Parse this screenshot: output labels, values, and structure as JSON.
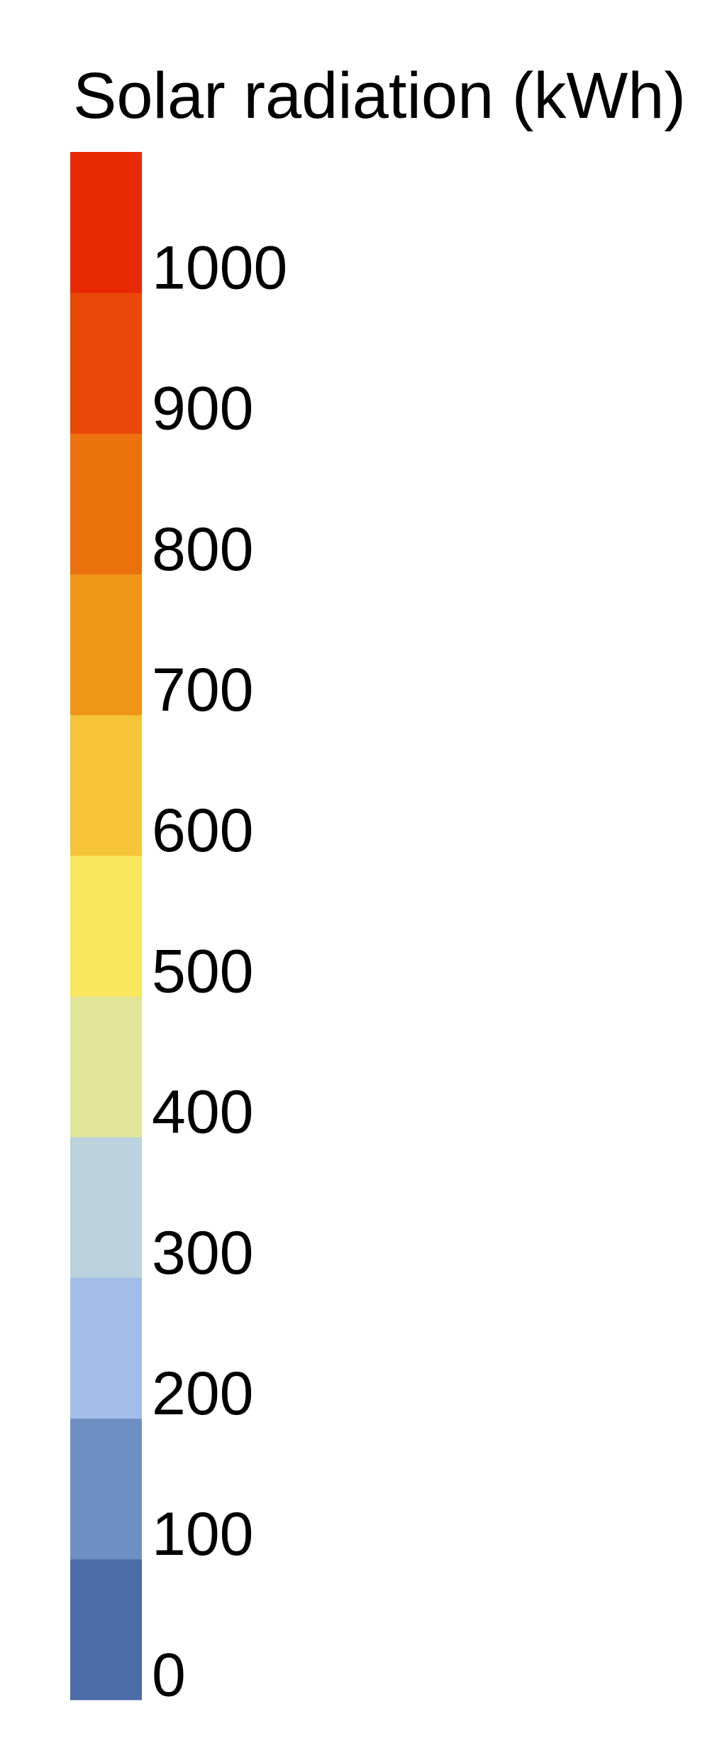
{
  "legend": {
    "title": "Solar radiation (kWh)",
    "bins": [
      {
        "from": 0,
        "to": 100,
        "color": "#4c6ca8"
      },
      {
        "from": 100,
        "to": 200,
        "color": "#6f90c5"
      },
      {
        "from": 200,
        "to": 300,
        "color": "#a2bdea"
      },
      {
        "from": 300,
        "to": 400,
        "color": "#bcd2dd"
      },
      {
        "from": 400,
        "to": 500,
        "color": "#e1e597"
      },
      {
        "from": 500,
        "to": 600,
        "color": "#f9e85e"
      },
      {
        "from": 600,
        "to": 700,
        "color": "#f6c539"
      },
      {
        "from": 700,
        "to": 800,
        "color": "#ef9618"
      },
      {
        "from": 800,
        "to": 900,
        "color": "#eb710c"
      },
      {
        "from": 900,
        "to": 1000,
        "color": "#e94807"
      },
      {
        "from": 1000,
        "to": 1100,
        "color": "#e82a03"
      }
    ],
    "tick_labels": [
      "0",
      "100",
      "200",
      "300",
      "400",
      "500",
      "600",
      "700",
      "800",
      "900",
      "1000"
    ]
  }
}
